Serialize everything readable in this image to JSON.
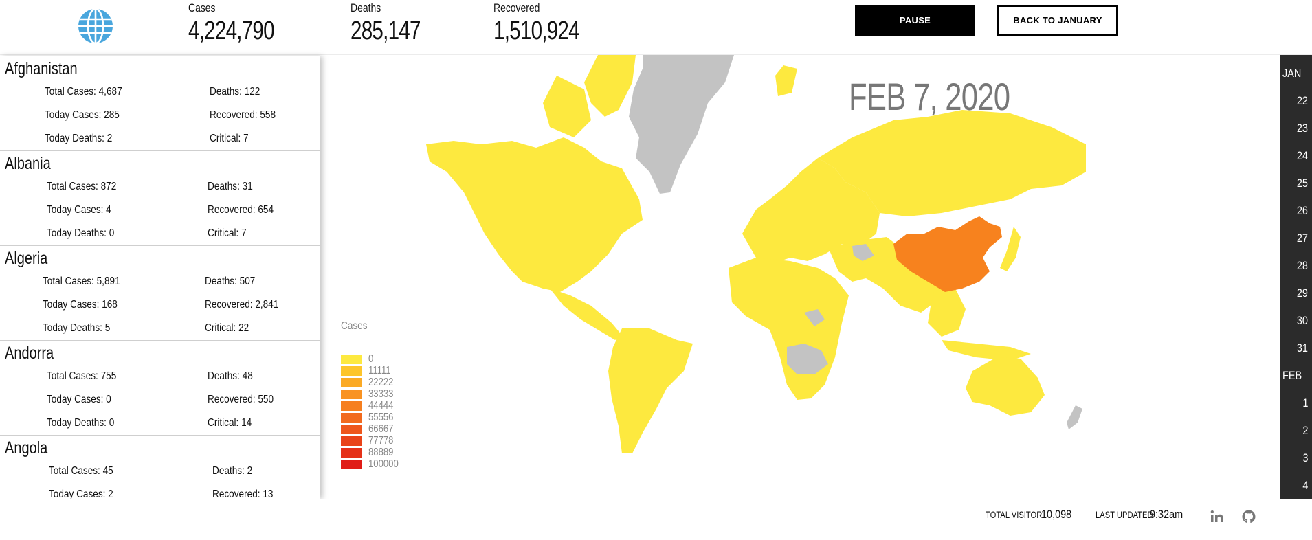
{
  "header": {
    "logo_icon": "globe-icon",
    "stats": [
      {
        "label": "Cases",
        "value": "4,224,790"
      },
      {
        "label": "Deaths",
        "value": "285,147"
      },
      {
        "label": "Recovered",
        "value": "1,510,924"
      }
    ],
    "pause_label": "PAUSE",
    "back_label": "BACK TO JANUARY"
  },
  "countries": [
    {
      "name": "Afghanistan",
      "total_cases": "Total Cases: 4,687",
      "deaths": "Deaths: 122",
      "today_cases": "Today Cases: 285",
      "recovered": "Recovered: 558",
      "today_deaths": "Today Deaths: 2",
      "critical": "Critical: 7"
    },
    {
      "name": "Albania",
      "total_cases": "Total Cases: 872",
      "deaths": "Deaths: 31",
      "today_cases": "Today Cases: 4",
      "recovered": "Recovered: 654",
      "today_deaths": "Today Deaths: 0",
      "critical": "Critical: 7"
    },
    {
      "name": "Algeria",
      "total_cases": "Total Cases: 5,891",
      "deaths": "Deaths: 507",
      "today_cases": "Today Cases: 168",
      "recovered": "Recovered: 2,841",
      "today_deaths": "Today Deaths: 5",
      "critical": "Critical: 22"
    },
    {
      "name": "Andorra",
      "total_cases": "Total Cases: 755",
      "deaths": "Deaths: 48",
      "today_cases": "Today Cases: 0",
      "recovered": "Recovered: 550",
      "today_deaths": "Today Deaths: 0",
      "critical": "Critical: 14"
    },
    {
      "name": "Angola",
      "total_cases": "Total Cases: 45",
      "deaths": "Deaths: 2",
      "today_cases": "Today Cases: 2",
      "recovered": "Recovered: 13",
      "today_deaths": "",
      "critical": ""
    }
  ],
  "map": {
    "date": "FEB 7, 2020",
    "legend_title": "Cases",
    "legend": [
      {
        "label": "0",
        "color": "#fde93f"
      },
      {
        "label": "11111",
        "color": "#fdc52b"
      },
      {
        "label": "22222",
        "color": "#fbaa25"
      },
      {
        "label": "33333",
        "color": "#f99322"
      },
      {
        "label": "44444",
        "color": "#f67f1f"
      },
      {
        "label": "55556",
        "color": "#f26a1d"
      },
      {
        "label": "66667",
        "color": "#ee561b"
      },
      {
        "label": "77778",
        "color": "#e94319"
      },
      {
        "label": "88889",
        "color": "#e53118"
      },
      {
        "label": "100000",
        "color": "#e01c17"
      }
    ],
    "colors": {
      "low": "#fde93f",
      "china": "#f7821e",
      "nodata": "#c3c3c3"
    }
  },
  "timeline": {
    "items": [
      {
        "label": "JAN",
        "month": true
      },
      {
        "label": "22"
      },
      {
        "label": "23"
      },
      {
        "label": "24"
      },
      {
        "label": "25"
      },
      {
        "label": "26"
      },
      {
        "label": "27"
      },
      {
        "label": "28"
      },
      {
        "label": "29"
      },
      {
        "label": "30"
      },
      {
        "label": "31"
      },
      {
        "label": "FEB",
        "month": true
      },
      {
        "label": "1"
      },
      {
        "label": "2"
      },
      {
        "label": "3"
      },
      {
        "label": "4"
      }
    ]
  },
  "footer": {
    "visitor_label": "TOTAL VISITOR",
    "visitor_value": "10,098",
    "updated_label": "LAST UPDATED",
    "updated_value": "9:32am",
    "social_icons": [
      "linkedin-icon",
      "github-icon"
    ]
  }
}
